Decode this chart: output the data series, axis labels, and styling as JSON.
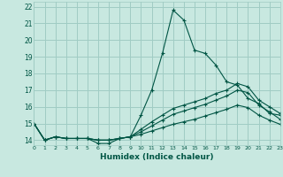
{
  "title": "",
  "xlabel": "Humidex (Indice chaleur)",
  "ylabel": "",
  "bg_color": "#c8e8e0",
  "grid_color": "#a0ccc4",
  "line_color": "#005544",
  "xlim": [
    0,
    23
  ],
  "ylim": [
    13.7,
    22.3
  ],
  "yticks": [
    14,
    15,
    16,
    17,
    18,
    19,
    20,
    21,
    22
  ],
  "xticks": [
    0,
    1,
    2,
    3,
    4,
    5,
    6,
    7,
    8,
    9,
    10,
    11,
    12,
    13,
    14,
    15,
    16,
    17,
    18,
    19,
    20,
    21,
    22,
    23
  ],
  "series": [
    [
      15.0,
      14.0,
      14.2,
      14.1,
      14.1,
      14.1,
      13.8,
      13.8,
      14.1,
      14.2,
      15.5,
      17.0,
      19.2,
      21.8,
      21.2,
      19.4,
      19.2,
      18.5,
      17.5,
      17.3,
      16.5,
      16.2,
      15.6,
      15.5
    ],
    [
      15.0,
      14.0,
      14.2,
      14.1,
      14.1,
      14.1,
      14.0,
      14.0,
      14.1,
      14.2,
      14.65,
      15.1,
      15.5,
      15.9,
      16.1,
      16.3,
      16.5,
      16.8,
      17.0,
      17.4,
      17.2,
      16.4,
      16.0,
      15.6
    ],
    [
      15.0,
      14.0,
      14.2,
      14.1,
      14.1,
      14.1,
      14.0,
      14.0,
      14.1,
      14.2,
      14.5,
      14.85,
      15.2,
      15.55,
      15.75,
      15.95,
      16.15,
      16.4,
      16.65,
      17.0,
      16.85,
      16.1,
      15.7,
      15.25
    ],
    [
      15.0,
      14.0,
      14.2,
      14.1,
      14.1,
      14.1,
      14.0,
      14.0,
      14.1,
      14.2,
      14.35,
      14.55,
      14.75,
      14.95,
      15.1,
      15.25,
      15.45,
      15.65,
      15.85,
      16.1,
      15.95,
      15.5,
      15.2,
      14.95
    ]
  ]
}
